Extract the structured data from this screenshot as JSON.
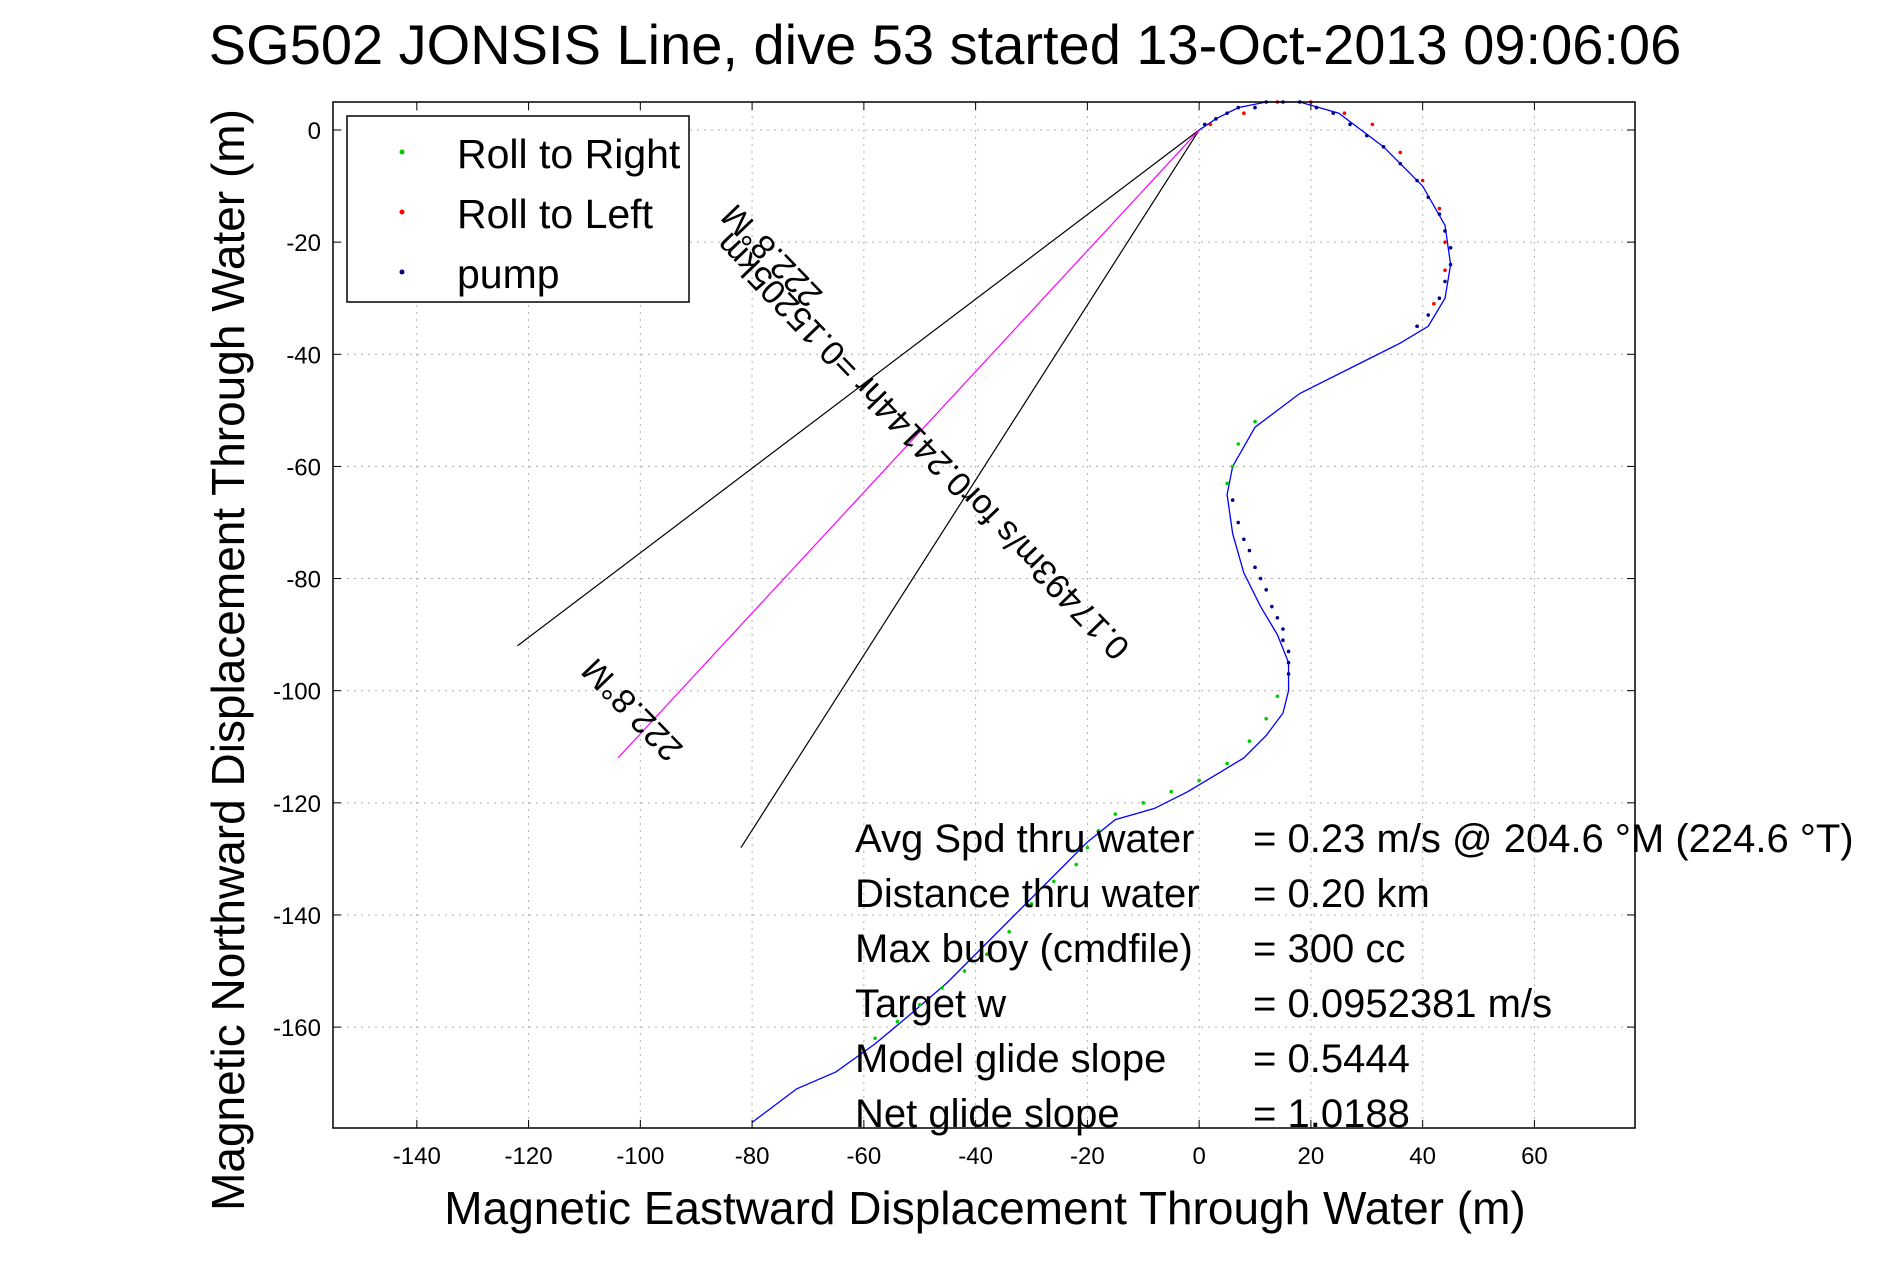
{
  "chart_data": {
    "type": "line",
    "title": "SG502 JONSIS Line, dive 53 started 13-Oct-2013 09:06:06",
    "xlabel": "Magnetic Eastward Displacement Through Water (m)",
    "ylabel": "Magnetic Northward Displacement Through Water (m)",
    "xlim": [
      -155,
      78
    ],
    "ylim": [
      -178,
      5
    ],
    "xticks": [
      -140,
      -120,
      -100,
      -80,
      -60,
      -40,
      -20,
      0,
      20,
      40,
      60
    ],
    "yticks": [
      0,
      -20,
      -40,
      -60,
      -80,
      -100,
      -120,
      -140,
      -160
    ],
    "grid": true,
    "legend": {
      "placement": "top-left",
      "entries": [
        {
          "label": "Roll to Right",
          "color": "#00cc00",
          "marker": "dot"
        },
        {
          "label": "Roll to Left",
          "color": "#ff0000",
          "marker": "dot"
        },
        {
          "label": "pump",
          "color": "#000080",
          "marker": "dot"
        }
      ]
    },
    "series": [
      {
        "color": "#0000ff",
        "x": [
          0,
          3,
          7,
          12,
          18,
          25,
          33,
          40,
          44,
          45,
          44,
          41,
          36,
          28,
          18,
          10,
          6,
          5,
          6,
          8,
          11,
          14,
          16,
          16,
          15,
          12,
          8,
          3,
          -2,
          -8,
          -15,
          -20,
          -24,
          -30,
          -38,
          -45,
          -52,
          -58,
          -65,
          -72,
          -80
        ],
        "y": [
          0,
          2,
          4,
          5,
          5,
          3,
          -3,
          -10,
          -17,
          -24,
          -30,
          -35,
          -38,
          -42,
          -47,
          -53,
          -60,
          -65,
          -72,
          -79,
          -85,
          -90,
          -95,
          -100,
          -104,
          -108,
          -112,
          -115,
          -118,
          -121,
          -123,
          -127,
          -131,
          -137,
          -145,
          -152,
          -158,
          -163,
          -168,
          -171,
          -177
        ]
      }
    ],
    "marker_series": {
      "pump": {
        "color": "#000080",
        "x": [
          1,
          3,
          5,
          7,
          10,
          12,
          15,
          18,
          21,
          24,
          27,
          30,
          33,
          36,
          39,
          41,
          43,
          44,
          45,
          45,
          44,
          43,
          41,
          39,
          6,
          7,
          8,
          9,
          10,
          11,
          12,
          13,
          14,
          15,
          15,
          16,
          16,
          16
        ],
        "y": [
          1,
          2,
          3,
          4,
          4,
          5,
          5,
          5,
          4,
          3,
          1,
          -1,
          -3,
          -6,
          -9,
          -12,
          -15,
          -18,
          -21,
          -24,
          -27,
          -30,
          -33,
          -35,
          -66,
          -70,
          -73,
          -75,
          -78,
          -80,
          -82,
          -85,
          -87,
          -89,
          -91,
          -93,
          -95,
          -97
        ]
      },
      "roll_left": {
        "color": "#ff0000",
        "x": [
          2,
          8,
          14,
          20,
          26,
          31,
          36,
          40,
          43,
          44,
          44,
          42,
          39
        ],
        "y": [
          1,
          3,
          5,
          5,
          3,
          1,
          -4,
          -9,
          -14,
          -20,
          -25,
          -31,
          -35
        ]
      },
      "roll_right": {
        "color": "#00cc00",
        "x": [
          10,
          7,
          6,
          5,
          14,
          12,
          9,
          5,
          0,
          -5,
          -10,
          -15,
          -18,
          -20,
          -22,
          -26,
          -30,
          -34,
          -38,
          -42,
          -46,
          -50,
          -54,
          -58
        ],
        "y": [
          -52,
          -56,
          -60,
          -63,
          -101,
          -105,
          -109,
          -113,
          -116,
          -118,
          -120,
          -122,
          -125,
          -128,
          -131,
          -134,
          -138,
          -143,
          -147,
          -150,
          -153,
          -156,
          -159,
          -162
        ]
      }
    },
    "reference_lines": [
      {
        "color": "#000000",
        "x": [
          0,
          -122
        ],
        "y": [
          0,
          -92
        ]
      },
      {
        "color": "#000000",
        "x": [
          0,
          -82
        ],
        "y": [
          0,
          -128
        ]
      },
      {
        "color": "#ff00ff",
        "x": [
          0,
          -104
        ],
        "y": [
          0,
          -112
        ]
      }
    ],
    "annotations": [
      {
        "text": "0.17493m/s for0.24144hr =0.15205km",
        "x": -48,
        "y": -55,
        "rotate": 226
      },
      {
        "text": "222.8°M",
        "x": -75,
        "y": -21,
        "rotate": 226
      },
      {
        "text": "222.8°M",
        "x": -100,
        "y": -102,
        "rotate": 226
      }
    ],
    "info_panel": [
      {
        "label": "Avg Spd thru water",
        "value": "=  0.23 m/s @ 204.6  °M (224.6 °T)"
      },
      {
        "label": "Distance thru water",
        "value": "=  0.20 km"
      },
      {
        "label": "Max buoy (cmdfile)",
        "value": "= 300 cc"
      },
      {
        "label": "Target w",
        "value": "= 0.0952381 m/s"
      },
      {
        "label": "Model glide slope",
        "value": "= 0.5444"
      },
      {
        "label": "Net glide slope",
        "value": "= 1.0188"
      }
    ]
  }
}
